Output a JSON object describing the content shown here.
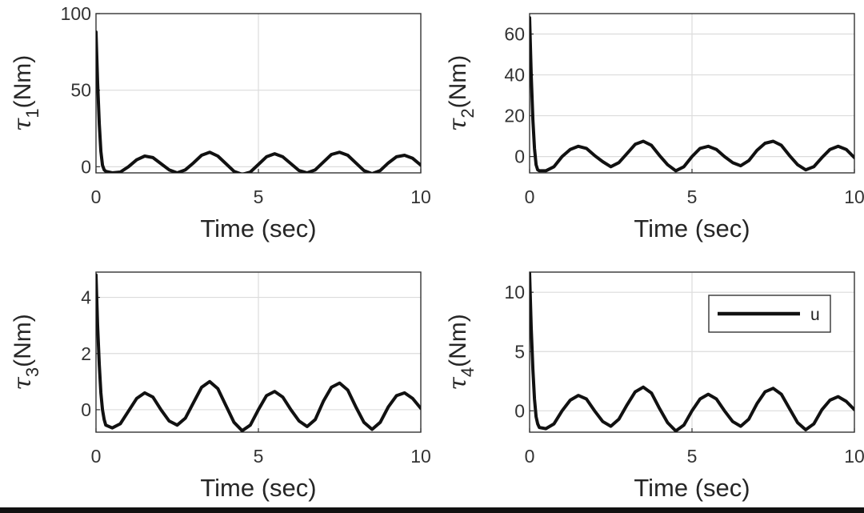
{
  "chart_data": [
    {
      "type": "line",
      "xlabel": "Time (sec)",
      "ylabel": {
        "sym": "τ",
        "sub": "1",
        "unit": "(Nm)"
      },
      "xlim": [
        0,
        10
      ],
      "ylim": [
        -4,
        100
      ],
      "xticks": [
        0,
        5,
        10
      ],
      "yticks": [
        0,
        50,
        100
      ],
      "grid": true,
      "series": [
        {
          "name": "u",
          "color": "#111111",
          "x": [
            0,
            0.05,
            0.1,
            0.15,
            0.2,
            0.25,
            0.3,
            0.5,
            0.75,
            1.0,
            1.25,
            1.5,
            1.75,
            2.0,
            2.25,
            2.5,
            2.75,
            3.0,
            3.25,
            3.5,
            3.75,
            4.0,
            4.25,
            4.5,
            4.75,
            5.0,
            5.25,
            5.5,
            5.75,
            6.0,
            6.25,
            6.5,
            6.75,
            7.0,
            7.25,
            7.5,
            7.75,
            8.0,
            8.25,
            8.5,
            8.75,
            9.0,
            9.25,
            9.5,
            9.75,
            10.0
          ],
          "y": [
            88,
            55,
            28,
            10,
            1,
            -2,
            -3,
            -4,
            -3.5,
            0,
            4.5,
            7,
            6,
            2,
            -2,
            -4,
            -2,
            2.5,
            7.5,
            9.5,
            7,
            2,
            -3,
            -5,
            -3.5,
            1.5,
            6.5,
            8.5,
            6.5,
            2,
            -2.5,
            -4,
            -2,
            3,
            8,
            9.5,
            7.5,
            2.5,
            -2.5,
            -4.5,
            -2.5,
            2.5,
            6.5,
            7.5,
            5.5,
            1
          ]
        }
      ]
    },
    {
      "type": "line",
      "xlabel": "Time (sec)",
      "ylabel": {
        "sym": "τ",
        "sub": "2",
        "unit": "(Nm)"
      },
      "xlim": [
        0,
        10
      ],
      "ylim": [
        -8,
        70
      ],
      "xticks": [
        0,
        5,
        10
      ],
      "yticks": [
        0,
        20,
        40,
        60
      ],
      "grid": true,
      "series": [
        {
          "name": "u",
          "color": "#111111",
          "x": [
            0,
            0.05,
            0.1,
            0.15,
            0.2,
            0.25,
            0.3,
            0.5,
            0.75,
            1.0,
            1.25,
            1.5,
            1.75,
            2.0,
            2.25,
            2.5,
            2.75,
            3.0,
            3.25,
            3.5,
            3.75,
            4.0,
            4.25,
            4.5,
            4.75,
            5.0,
            5.25,
            5.5,
            5.75,
            6.0,
            6.25,
            6.5,
            6.75,
            7.0,
            7.25,
            7.5,
            7.75,
            8.0,
            8.25,
            8.5,
            8.75,
            9.0,
            9.25,
            9.5,
            9.75,
            10.0
          ],
          "y": [
            68,
            40,
            18,
            4,
            -4,
            -6.5,
            -7,
            -7,
            -5,
            0,
            3.5,
            5,
            4,
            0.5,
            -2.5,
            -5,
            -3,
            1.5,
            6,
            7.5,
            5.5,
            0.5,
            -4,
            -7,
            -5,
            0,
            4,
            5,
            3.5,
            0,
            -3,
            -4.5,
            -2,
            3,
            6.5,
            7.5,
            5.5,
            0.5,
            -4,
            -6.5,
            -5,
            -0.5,
            3.5,
            5,
            3.5,
            -0.5
          ]
        }
      ]
    },
    {
      "type": "line",
      "xlabel": "Time (sec)",
      "ylabel": {
        "sym": "τ",
        "sub": "3",
        "unit": "(Nm)"
      },
      "xlim": [
        0,
        10
      ],
      "ylim": [
        -0.8,
        4.9
      ],
      "xticks": [
        0,
        5,
        10
      ],
      "yticks": [
        0,
        2,
        4
      ],
      "grid": true,
      "series": [
        {
          "name": "u",
          "color": "#111111",
          "x": [
            0,
            0.05,
            0.1,
            0.15,
            0.2,
            0.25,
            0.3,
            0.5,
            0.75,
            1.0,
            1.25,
            1.5,
            1.75,
            2.0,
            2.25,
            2.5,
            2.75,
            3.0,
            3.25,
            3.5,
            3.75,
            4.0,
            4.25,
            4.5,
            4.75,
            5.0,
            5.25,
            5.5,
            5.75,
            6.0,
            6.25,
            6.5,
            6.75,
            7.0,
            7.25,
            7.5,
            7.75,
            8.0,
            8.25,
            8.5,
            8.75,
            9.0,
            9.25,
            9.5,
            9.75,
            10.0
          ],
          "y": [
            4.8,
            3.0,
            1.6,
            0.6,
            0.0,
            -0.35,
            -0.55,
            -0.65,
            -0.5,
            -0.05,
            0.4,
            0.6,
            0.45,
            0.0,
            -0.4,
            -0.55,
            -0.3,
            0.25,
            0.8,
            1.0,
            0.75,
            0.15,
            -0.45,
            -0.75,
            -0.55,
            0.0,
            0.5,
            0.65,
            0.45,
            0.0,
            -0.4,
            -0.6,
            -0.35,
            0.3,
            0.8,
            0.95,
            0.7,
            0.1,
            -0.45,
            -0.7,
            -0.45,
            0.1,
            0.5,
            0.6,
            0.4,
            0.05
          ]
        }
      ]
    },
    {
      "type": "line",
      "xlabel": "Time (sec)",
      "ylabel": {
        "sym": "τ",
        "sub": "4",
        "unit": "(Nm)"
      },
      "xlim": [
        0,
        10
      ],
      "ylim": [
        -1.8,
        11.7
      ],
      "xticks": [
        0,
        5,
        10
      ],
      "yticks": [
        0,
        5,
        10
      ],
      "grid": true,
      "legend": {
        "label": "u",
        "location": "top-right"
      },
      "series": [
        {
          "name": "u",
          "color": "#111111",
          "x": [
            0,
            0.05,
            0.1,
            0.15,
            0.2,
            0.25,
            0.3,
            0.5,
            0.75,
            1.0,
            1.25,
            1.5,
            1.75,
            2.0,
            2.25,
            2.5,
            2.75,
            3.0,
            3.25,
            3.5,
            3.75,
            4.0,
            4.25,
            4.5,
            4.75,
            5.0,
            5.25,
            5.5,
            5.75,
            6.0,
            6.25,
            6.5,
            6.75,
            7.0,
            7.25,
            7.5,
            7.75,
            8.0,
            8.25,
            8.5,
            8.75,
            9.0,
            9.25,
            9.5,
            9.75,
            10.0
          ],
          "y": [
            11.6,
            7.0,
            3.5,
            1.0,
            -0.5,
            -1.1,
            -1.4,
            -1.5,
            -1.1,
            0.0,
            0.9,
            1.3,
            1.0,
            0.0,
            -0.9,
            -1.3,
            -0.7,
            0.5,
            1.6,
            2.0,
            1.5,
            0.2,
            -1.0,
            -1.7,
            -1.2,
            0.0,
            1.0,
            1.4,
            1.0,
            0.0,
            -0.9,
            -1.3,
            -0.7,
            0.6,
            1.6,
            1.9,
            1.4,
            0.2,
            -1.0,
            -1.6,
            -1.1,
            0.1,
            0.9,
            1.2,
            0.8,
            0.1
          ]
        }
      ]
    }
  ]
}
